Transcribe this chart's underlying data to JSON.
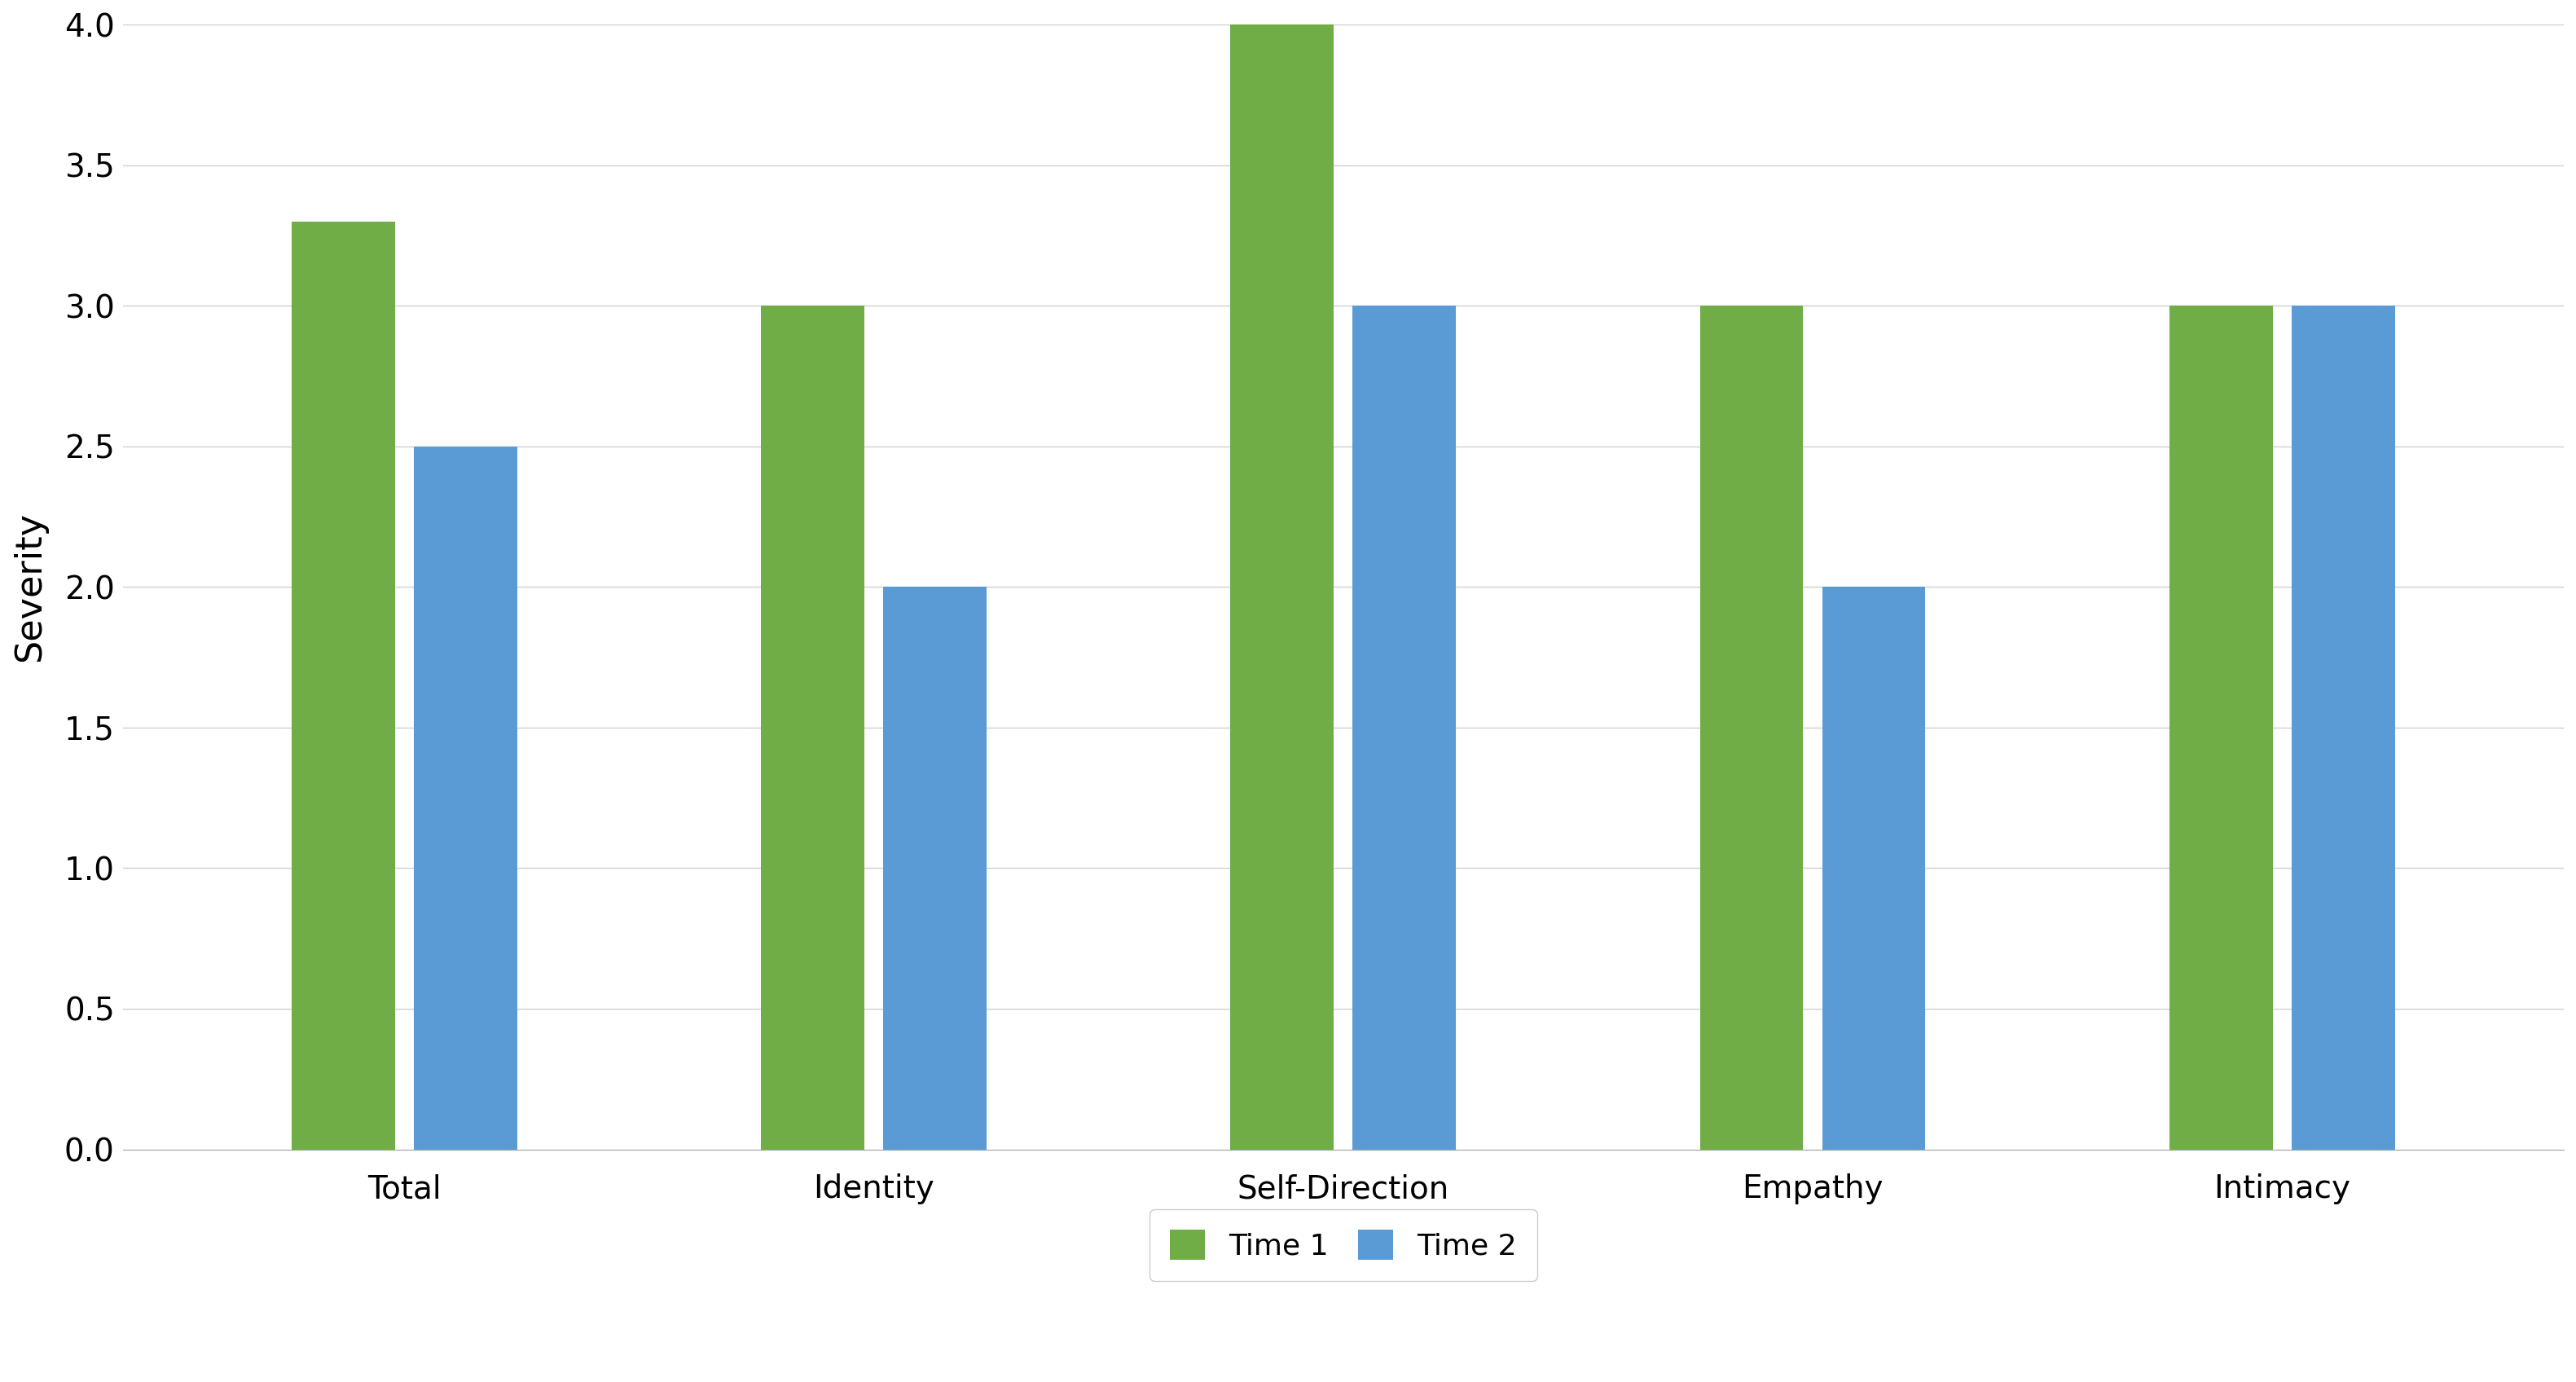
{
  "categories": [
    "Total",
    "Identity",
    "Self-Direction",
    "Empathy",
    "Intimacy"
  ],
  "time1_values": [
    3.3,
    3.0,
    4.0,
    3.0,
    3.0
  ],
  "time2_values": [
    2.5,
    2.0,
    3.0,
    2.0,
    3.0
  ],
  "time1_color": "#70ad47",
  "time2_color": "#5b9bd5",
  "ylabel": "Severity",
  "ylim": [
    0,
    4.0
  ],
  "yticks": [
    0.0,
    0.5,
    1.0,
    1.5,
    2.0,
    2.5,
    3.0,
    3.5,
    4.0
  ],
  "legend_labels": [
    "Time 1",
    "Time 2"
  ],
  "bar_width": 0.22,
  "bar_gap": 0.04,
  "background_color": "#ffffff",
  "grid_color": "#d0d0d0",
  "tick_fontsize": 28,
  "label_fontsize": 32,
  "legend_fontsize": 26
}
